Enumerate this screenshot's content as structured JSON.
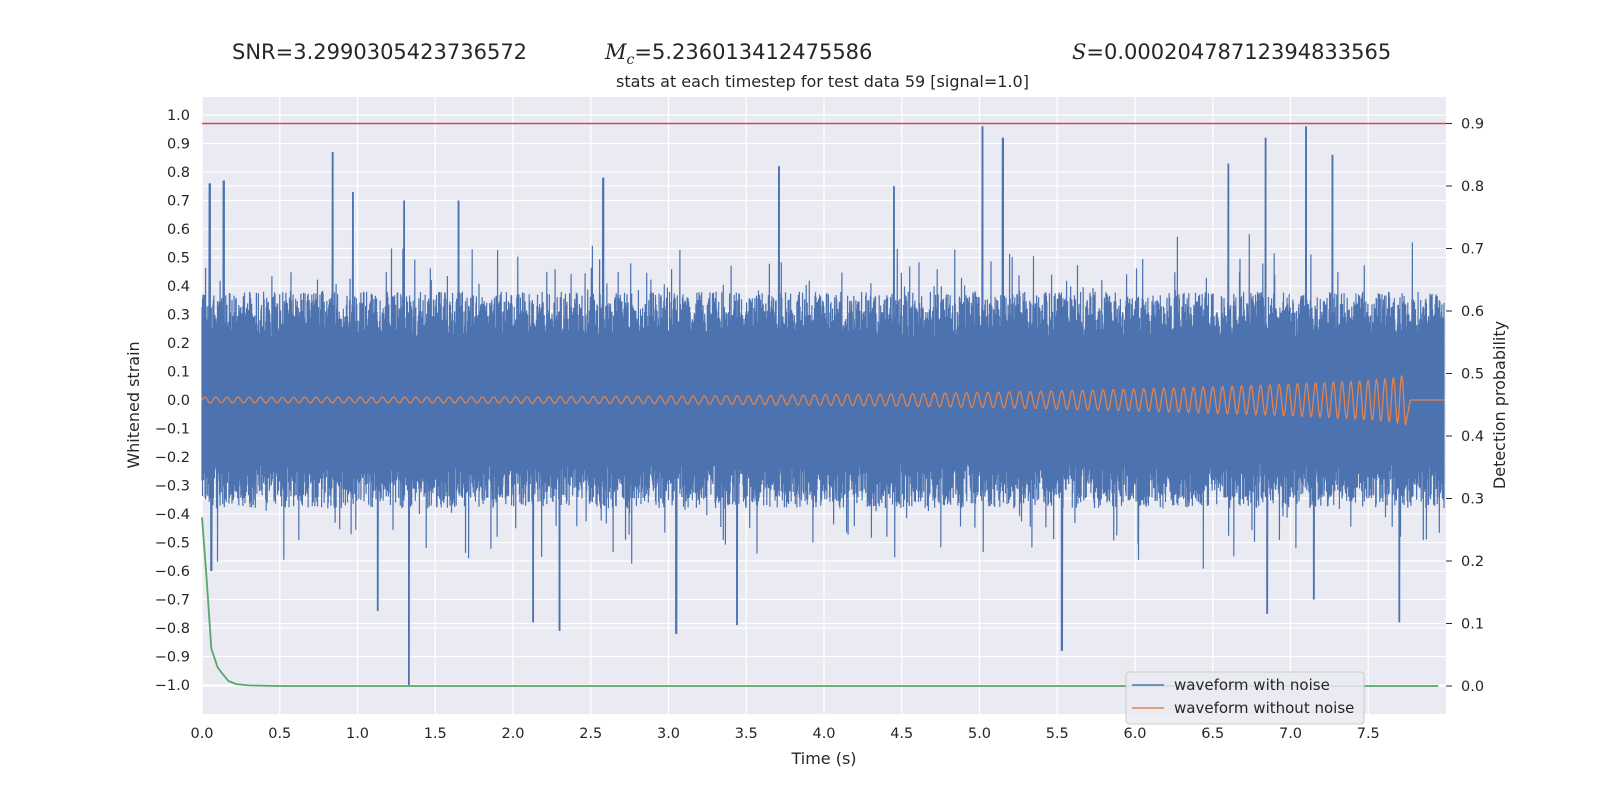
{
  "stats": {
    "snr_label": "SNR=",
    "snr_value": "3.2990305423736572",
    "mc_symbol": "M",
    "mc_subscript": "c",
    "mc_value": "=5.236013412475586",
    "s_symbol": "S",
    "s_value": "=0.00020478712394833565"
  },
  "chart_data": {
    "type": "line",
    "title": "stats at each timestep for test data 59 [signal=1.0]",
    "xlabel": "Time (s)",
    "ylabel_left": "Whitened strain",
    "ylabel_right": "Detection probability",
    "xlim": [
      0.0,
      8.0
    ],
    "ylim_left": [
      -1.09,
      1.1
    ],
    "ylim_right": [
      -0.04,
      0.93
    ],
    "x_ticks": [
      "0.0",
      "0.5",
      "1.0",
      "1.5",
      "2.0",
      "2.5",
      "3.0",
      "3.5",
      "4.0",
      "4.5",
      "5.0",
      "5.5",
      "6.0",
      "6.5",
      "7.0",
      "7.5"
    ],
    "y_ticks_left": [
      "1.0",
      "0.9",
      "0.8",
      "0.7",
      "0.6",
      "0.5",
      "0.4",
      "0.3",
      "0.2",
      "0.1",
      "0.0",
      "-0.1",
      "-0.2",
      "-0.3",
      "-0.4",
      "-0.5",
      "-0.6",
      "-0.7",
      "-0.8",
      "-0.9",
      "-1.0"
    ],
    "y_ticks_right": [
      "0.9",
      "0.8",
      "0.7",
      "0.6",
      "0.5",
      "0.4",
      "0.3",
      "0.2",
      "0.1",
      "0.0"
    ],
    "grid": true,
    "legend_position": "lower-right",
    "series": [
      {
        "name": "waveform with noise",
        "axis": "left",
        "color": "#4c72b0",
        "peaks_up": [
          [
            0.05,
            0.76
          ],
          [
            0.14,
            0.77
          ],
          [
            0.84,
            0.87
          ],
          [
            0.97,
            0.73
          ],
          [
            1.3,
            0.7
          ],
          [
            1.65,
            0.7
          ],
          [
            2.58,
            0.78
          ],
          [
            3.71,
            0.82
          ],
          [
            4.45,
            0.75
          ],
          [
            5.02,
            0.96
          ],
          [
            5.15,
            0.92
          ],
          [
            6.6,
            0.83
          ],
          [
            6.84,
            0.92
          ],
          [
            7.1,
            0.96
          ],
          [
            7.27,
            0.86
          ]
        ],
        "peaks_down": [
          [
            0.06,
            -0.6
          ],
          [
            1.13,
            -0.74
          ],
          [
            1.33,
            -1.0
          ],
          [
            2.13,
            -0.78
          ],
          [
            2.3,
            -0.81
          ],
          [
            3.05,
            -0.82
          ],
          [
            3.44,
            -0.79
          ],
          [
            5.53,
            -0.88
          ],
          [
            6.85,
            -0.75
          ],
          [
            7.15,
            -0.7
          ],
          [
            7.7,
            -0.78
          ]
        ]
      },
      {
        "name": "waveform without noise",
        "axis": "left",
        "color": "#dd8452",
        "amplitude_start": 0.01,
        "amplitude_end": 0.07,
        "merger_time": 7.74
      },
      {
        "name": "detection probability",
        "axis": "right",
        "color": "#55a868",
        "x": [
          0.0,
          0.03,
          0.06,
          0.1,
          0.13,
          0.17,
          0.22,
          0.3,
          0.5,
          1.0,
          7.95
        ],
        "y": [
          0.27,
          0.17,
          0.06,
          0.03,
          0.02,
          0.008,
          0.003,
          0.001,
          0.0,
          0.0,
          0.0
        ]
      },
      {
        "name": "threshold",
        "axis": "right",
        "color": "#c44e52",
        "x": [
          0.0,
          8.0
        ],
        "y": [
          0.9,
          0.9
        ]
      }
    ]
  }
}
